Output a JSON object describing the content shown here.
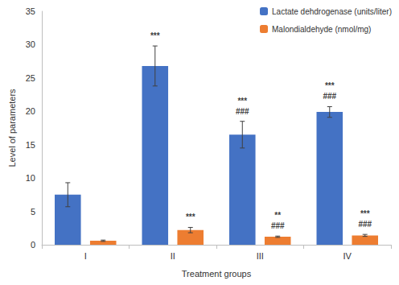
{
  "chart_data": {
    "type": "bar",
    "categories": [
      "I",
      "II",
      "III",
      "IV"
    ],
    "x_label": "Treatment groups",
    "y_label": "Level of parameters",
    "ylim": [
      0,
      35
    ],
    "yticks": [
      0,
      5,
      10,
      15,
      20,
      25,
      30,
      35
    ],
    "grid": false,
    "legend": "top-right",
    "series": [
      {
        "name": "Lactate dehdrogenase (units/liter)",
        "color": "#4472c4",
        "values": [
          7.5,
          26.8,
          16.5,
          19.9
        ],
        "errors": [
          1.8,
          3.0,
          2.0,
          0.8
        ],
        "annotations": [
          null,
          [
            "***"
          ],
          [
            "***",
            "###"
          ],
          [
            "***",
            "###"
          ]
        ]
      },
      {
        "name": "Malondialdehyde (nmol/mg)",
        "color": "#ed7d31",
        "values": [
          0.6,
          2.2,
          1.2,
          1.4
        ],
        "errors": [
          0.1,
          0.4,
          0.1,
          0.15
        ],
        "annotations": [
          null,
          [
            "***"
          ],
          [
            "**",
            "###"
          ],
          [
            "***",
            "###"
          ]
        ]
      }
    ]
  }
}
